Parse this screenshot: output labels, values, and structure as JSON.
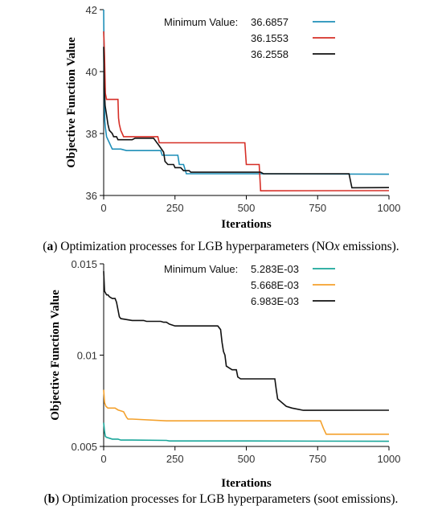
{
  "captions": [
    {
      "letter": "a",
      "open": "(",
      "close": ")",
      "pre": " Optimization processes for LGB hyperparameters (NO",
      "ital": "x",
      "post": " emissions)."
    },
    {
      "letter": "b",
      "open": "(",
      "close": ")",
      "pre": " Optimization processes for LGB hyperparameters (soot emissions).",
      "ital": "",
      "post": ""
    }
  ],
  "chart_data": [
    {
      "type": "line",
      "xlabel": "Iterations",
      "ylabel": "Objective Function Value",
      "xlim": [
        0,
        1000
      ],
      "ylim": [
        36,
        42
      ],
      "xticks": [
        "0",
        "250",
        "500",
        "750",
        "1000"
      ],
      "yticks": [
        "36",
        "38",
        "40",
        "42"
      ],
      "legend_title": "Minimum Value:",
      "legend_position": "top-right",
      "series": [
        {
          "name": "36.6857",
          "color": "#1f8fb8",
          "points": [
            [
              0,
              42
            ],
            [
              2,
              39.8
            ],
            [
              4,
              38.4
            ],
            [
              6,
              38.2
            ],
            [
              10,
              37.9
            ],
            [
              15,
              37.8
            ],
            [
              20,
              37.7
            ],
            [
              25,
              37.6
            ],
            [
              30,
              37.5
            ],
            [
              60,
              37.5
            ],
            [
              80,
              37.45
            ],
            [
              200,
              37.45
            ],
            [
              205,
              37.3
            ],
            [
              260,
              37.3
            ],
            [
              265,
              37.0
            ],
            [
              280,
              37.0
            ],
            [
              290,
              36.7
            ],
            [
              500,
              36.7
            ],
            [
              510,
              36.7
            ],
            [
              1000,
              36.6857
            ]
          ]
        },
        {
          "name": "36.1553",
          "color": "#d62f27",
          "points": [
            [
              0,
              41.3
            ],
            [
              3,
              40.5
            ],
            [
              6,
              39.3
            ],
            [
              10,
              39.1
            ],
            [
              25,
              39.1
            ],
            [
              50,
              39.1
            ],
            [
              52,
              38.5
            ],
            [
              55,
              38.3
            ],
            [
              60,
              38.1
            ],
            [
              65,
              38.0
            ],
            [
              70,
              37.9
            ],
            [
              100,
              37.9
            ],
            [
              140,
              37.9
            ],
            [
              190,
              37.9
            ],
            [
              195,
              37.7
            ],
            [
              300,
              37.7
            ],
            [
              495,
              37.7
            ],
            [
              500,
              37.0
            ],
            [
              545,
              37.0
            ],
            [
              550,
              36.15
            ],
            [
              1000,
              36.1553
            ]
          ]
        },
        {
          "name": "36.2558",
          "color": "#111111",
          "points": [
            [
              0,
              40.8
            ],
            [
              2,
              39.5
            ],
            [
              5,
              38.9
            ],
            [
              10,
              38.6
            ],
            [
              15,
              38.3
            ],
            [
              20,
              38.1
            ],
            [
              30,
              38.0
            ],
            [
              35,
              37.9
            ],
            [
              45,
              37.9
            ],
            [
              50,
              37.8
            ],
            [
              60,
              37.8
            ],
            [
              100,
              37.8
            ],
            [
              110,
              37.85
            ],
            [
              160,
              37.85
            ],
            [
              175,
              37.85
            ],
            [
              195,
              37.6
            ],
            [
              210,
              37.4
            ],
            [
              215,
              37.1
            ],
            [
              225,
              37.0
            ],
            [
              245,
              37.0
            ],
            [
              250,
              36.9
            ],
            [
              270,
              36.9
            ],
            [
              280,
              36.8
            ],
            [
              300,
              36.8
            ],
            [
              305,
              36.75
            ],
            [
              550,
              36.75
            ],
            [
              560,
              36.7
            ],
            [
              860,
              36.7
            ],
            [
              870,
              36.25
            ],
            [
              1000,
              36.2558
            ]
          ]
        }
      ]
    },
    {
      "type": "line",
      "xlabel": "Iterations",
      "ylabel": "Objective Function Value",
      "xlim": [
        0,
        1000
      ],
      "ylim": [
        0.005,
        0.015
      ],
      "xticks": [
        "0",
        "250",
        "500",
        "750",
        "1000"
      ],
      "yticks": [
        "0.005",
        "0.01",
        "0.015"
      ],
      "legend_title": "Minimum Value:",
      "legend_position": "top-right",
      "series": [
        {
          "name": "5.283E-03",
          "color": "#1aa69a",
          "points": [
            [
              0,
              0.0063
            ],
            [
              3,
              0.0058
            ],
            [
              6,
              0.00555
            ],
            [
              10,
              0.0055
            ],
            [
              30,
              0.0054
            ],
            [
              50,
              0.0054
            ],
            [
              60,
              0.00535
            ],
            [
              100,
              0.00535
            ],
            [
              220,
              0.00533
            ],
            [
              230,
              0.0053
            ],
            [
              500,
              0.0053
            ],
            [
              1000,
              0.005283
            ]
          ]
        },
        {
          "name": "5.668E-03",
          "color": "#f4a12c",
          "points": [
            [
              0,
              0.0081
            ],
            [
              3,
              0.0074
            ],
            [
              8,
              0.0072
            ],
            [
              15,
              0.0071
            ],
            [
              40,
              0.0071
            ],
            [
              50,
              0.007
            ],
            [
              70,
              0.0069
            ],
            [
              80,
              0.0066
            ],
            [
              85,
              0.0065
            ],
            [
              100,
              0.0065
            ],
            [
              220,
              0.0064
            ],
            [
              500,
              0.0064
            ],
            [
              760,
              0.0064
            ],
            [
              770,
              0.006
            ],
            [
              780,
              0.00567
            ],
            [
              1000,
              0.005668
            ]
          ]
        },
        {
          "name": "6.983E-03",
          "color": "#111111",
          "points": [
            [
              0,
              0.0146
            ],
            [
              3,
              0.0135
            ],
            [
              10,
              0.0133
            ],
            [
              15,
              0.0133
            ],
            [
              20,
              0.0132
            ],
            [
              30,
              0.0131
            ],
            [
              40,
              0.0131
            ],
            [
              45,
              0.0129
            ],
            [
              55,
              0.0121
            ],
            [
              60,
              0.012
            ],
            [
              100,
              0.0119
            ],
            [
              140,
              0.0119
            ],
            [
              150,
              0.01185
            ],
            [
              200,
              0.01185
            ],
            [
              210,
              0.0118
            ],
            [
              220,
              0.0118
            ],
            [
              230,
              0.0117
            ],
            [
              250,
              0.0116
            ],
            [
              400,
              0.0116
            ],
            [
              410,
              0.0114
            ],
            [
              415,
              0.0107
            ],
            [
              420,
              0.0102
            ],
            [
              425,
              0.01
            ],
            [
              430,
              0.0094
            ],
            [
              440,
              0.0093
            ],
            [
              450,
              0.0092
            ],
            [
              465,
              0.0092
            ],
            [
              470,
              0.0088
            ],
            [
              480,
              0.0087
            ],
            [
              600,
              0.0087
            ],
            [
              605,
              0.0081
            ],
            [
              610,
              0.0076
            ],
            [
              640,
              0.0072
            ],
            [
              660,
              0.0071
            ],
            [
              700,
              0.00698
            ],
            [
              1000,
              0.006983
            ]
          ]
        }
      ]
    }
  ]
}
